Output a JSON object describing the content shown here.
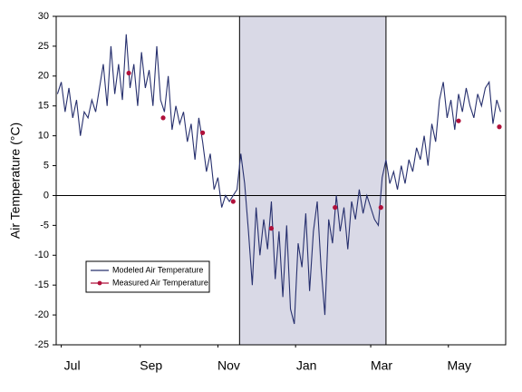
{
  "chart_data": {
    "type": "line",
    "y_label": "Air Temperature (°C)",
    "xlim": [
      -4,
      349
    ],
    "ylim": [
      -25,
      30
    ],
    "xticks": [
      {
        "value": 0,
        "label": "Jul"
      },
      {
        "value": 62,
        "label": "Sep"
      },
      {
        "value": 123,
        "label": "Nov"
      },
      {
        "value": 184,
        "label": "Jan"
      },
      {
        "value": 243,
        "label": "Mar"
      },
      {
        "value": 304,
        "label": "May"
      }
    ],
    "yticks": [
      -25,
      -20,
      -15,
      -10,
      -5,
      0,
      5,
      10,
      15,
      20,
      25,
      30
    ],
    "highlight": [
      140,
      255
    ],
    "zero_line": true,
    "legend": "lower left",
    "series": [
      {
        "name": "Modeled Air Temperature",
        "color": "#27306e",
        "style": "line",
        "x": [
          -3,
          0,
          3,
          6,
          9,
          12,
          15,
          18,
          21,
          24,
          27,
          30,
          33,
          36,
          39,
          42,
          45,
          48,
          51,
          54,
          57,
          60,
          63,
          66,
          69,
          72,
          75,
          78,
          81,
          84,
          87,
          90,
          93,
          96,
          99,
          102,
          105,
          108,
          111,
          114,
          117,
          120,
          123,
          126,
          129,
          132,
          135,
          138,
          141,
          144,
          147,
          150,
          153,
          156,
          159,
          162,
          165,
          168,
          171,
          174,
          177,
          180,
          183,
          186,
          189,
          192,
          195,
          198,
          201,
          204,
          207,
          210,
          213,
          216,
          219,
          222,
          225,
          228,
          231,
          234,
          237,
          240,
          243,
          246,
          249,
          252,
          255,
          258,
          261,
          264,
          267,
          270,
          273,
          276,
          279,
          282,
          285,
          288,
          291,
          294,
          297,
          300,
          303,
          306,
          309,
          312,
          315,
          318,
          321,
          324,
          327,
          330,
          333,
          336,
          339,
          342,
          345
        ],
        "values": [
          17,
          19,
          14,
          18,
          13,
          16,
          10,
          14,
          13,
          16,
          14,
          18,
          22,
          15,
          25,
          17,
          22,
          16,
          27,
          18,
          22,
          15,
          24,
          18,
          21,
          15,
          25,
          16,
          14,
          20,
          11,
          15,
          12,
          14,
          9,
          12,
          6,
          13,
          9,
          4,
          7,
          1,
          3,
          -2,
          0,
          -1,
          0,
          1,
          7,
          2,
          -6,
          -15,
          -2,
          -10,
          -4,
          -9,
          -1,
          -14,
          -6,
          -17,
          -5,
          -19,
          -21.5,
          -8,
          -12,
          -3,
          -16,
          -6,
          -1,
          -12,
          -20,
          -4,
          -8,
          0,
          -6,
          -2,
          -9,
          -1,
          -4,
          1,
          -3,
          0,
          -2,
          -4,
          -5,
          3,
          6,
          2,
          4,
          1,
          5,
          2,
          6,
          4,
          8,
          6,
          10,
          5,
          12,
          9,
          16,
          19,
          13,
          16,
          11,
          17,
          14,
          18,
          15,
          13,
          17,
          15,
          18,
          19,
          12,
          16,
          14
        ]
      },
      {
        "name": "Measured Air Temperature",
        "color": "#b0103a",
        "style": "points",
        "x": [
          53,
          80,
          111,
          135,
          165,
          215,
          251,
          312,
          344
        ],
        "values": [
          20.5,
          13,
          10.5,
          -1,
          -5.5,
          -2,
          -2,
          12.5,
          11.5
        ]
      }
    ]
  }
}
